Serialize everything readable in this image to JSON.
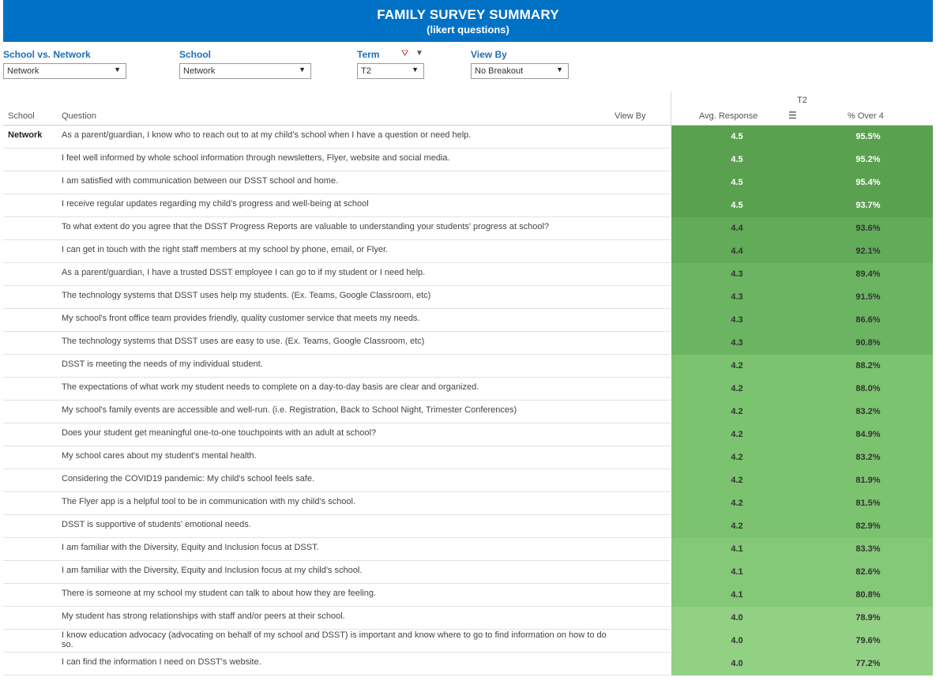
{
  "banner": {
    "title": "FAMILY SURVEY SUMMARY",
    "subtitle": "(likert questions)"
  },
  "filters": [
    {
      "label": "School vs. Network",
      "value": "Network"
    },
    {
      "label": "School",
      "value": "Network"
    },
    {
      "label": "Term",
      "value": "T2"
    },
    {
      "label": "View By",
      "value": "No Breakout"
    }
  ],
  "icons": {
    "filter_clear": "funnel-x-icon",
    "menu": "caret-down-icon",
    "sort": "sort-descending-icon",
    "dropdown": "caret-down-icon"
  },
  "colors": {
    "banner": "#0072c6",
    "label": "#1f6eb5",
    "green_dark": "#59a14f",
    "green_mid": "#6bb562",
    "green_light": "#7cc36f",
    "green_lightest": "#92d084"
  },
  "table": {
    "term_header": "T2",
    "columns": {
      "school": "School",
      "question": "Question",
      "view_by": "View By",
      "avg": "Avg. Response",
      "pct": "% Over 4"
    },
    "school_label": "Network",
    "rows": [
      {
        "q": "As a parent/guardian, I know who to reach out to at my child’s school when I have a question or need help.",
        "avg": "4.5",
        "pct": "95.5%",
        "color": "#59a14f",
        "text": "#ffffff"
      },
      {
        "q": "I feel well informed by whole school information through newsletters, Flyer, website and social media.",
        "avg": "4.5",
        "pct": "95.2%",
        "color": "#59a14f",
        "text": "#ffffff"
      },
      {
        "q": "I am satisfied with communication between our DSST school and home.",
        "avg": "4.5",
        "pct": "95.4%",
        "color": "#59a14f",
        "text": "#ffffff"
      },
      {
        "q": "I receive regular updates regarding my child’s progress and well-being at school",
        "avg": "4.5",
        "pct": "93.7%",
        "color": "#59a14f",
        "text": "#ffffff"
      },
      {
        "q": "To what extent do you agree that the DSST Progress Reports are valuable to understanding your students' progress at school?",
        "avg": "4.4",
        "pct": "93.6%",
        "color": "#62ab58",
        "text": "#333333"
      },
      {
        "q": "I can get in touch with the right staff members at my school by phone, email, or Flyer.",
        "avg": "4.4",
        "pct": "92.1%",
        "color": "#62ab58",
        "text": "#333333"
      },
      {
        "q": "As a parent/guardian, I have a trusted DSST employee I can go to if my student or I need help.",
        "avg": "4.3",
        "pct": "89.4%",
        "color": "#6bb562",
        "text": "#333333"
      },
      {
        "q": "The technology systems that DSST uses help my students. (Ex. Teams, Google Classroom, etc)",
        "avg": "4.3",
        "pct": "91.5%",
        "color": "#6bb562",
        "text": "#333333"
      },
      {
        "q": "My school's front office team provides friendly, quality customer service that meets my needs.",
        "avg": "4.3",
        "pct": "86.6%",
        "color": "#6bb562",
        "text": "#333333"
      },
      {
        "q": "The technology systems that DSST uses are easy to use. (Ex. Teams, Google Classroom, etc)",
        "avg": "4.3",
        "pct": "90.8%",
        "color": "#6bb562",
        "text": "#333333"
      },
      {
        "q": "DSST is meeting the needs of my individual student.",
        "avg": "4.2",
        "pct": "88.2%",
        "color": "#7cc36f",
        "text": "#333333"
      },
      {
        "q": "The expectations of what work my student needs to complete on a day-to-day basis are clear and organized.",
        "avg": "4.2",
        "pct": "88.0%",
        "color": "#7cc36f",
        "text": "#333333"
      },
      {
        "q": "My school's family events are accessible and well-run. (i.e. Registration, Back to School Night, Trimester Conferences)",
        "avg": "4.2",
        "pct": "83.2%",
        "color": "#7cc36f",
        "text": "#333333"
      },
      {
        "q": "Does your student get meaningful one-to-one touchpoints with an adult at school?",
        "avg": "4.2",
        "pct": "84.9%",
        "color": "#7cc36f",
        "text": "#333333"
      },
      {
        "q": "My school cares about my student's mental health.",
        "avg": "4.2",
        "pct": "83.2%",
        "color": "#7cc36f",
        "text": "#333333"
      },
      {
        "q": "Considering the COVID19 pandemic: My child's school feels safe.",
        "avg": "4.2",
        "pct": "81.9%",
        "color": "#7cc36f",
        "text": "#333333"
      },
      {
        "q": "The Flyer app is a helpful tool to be in communication with my child's school.",
        "avg": "4.2",
        "pct": "81.5%",
        "color": "#7cc36f",
        "text": "#333333"
      },
      {
        "q": "DSST is supportive of students' emotional needs.",
        "avg": "4.2",
        "pct": "82.9%",
        "color": "#7cc36f",
        "text": "#333333"
      },
      {
        "q": "I am familiar with the Diversity, Equity and Inclusion focus at DSST.",
        "avg": "4.1",
        "pct": "83.3%",
        "color": "#84c878",
        "text": "#333333"
      },
      {
        "q": "I am familiar with the Diversity, Equity and Inclusion focus at my child's school.",
        "avg": "4.1",
        "pct": "82.6%",
        "color": "#84c878",
        "text": "#333333"
      },
      {
        "q": "There is someone at my school my student can talk to about how they are feeling.",
        "avg": "4.1",
        "pct": "80.8%",
        "color": "#84c878",
        "text": "#333333"
      },
      {
        "q": "My student has strong relationships with staff and/or peers at their school.",
        "avg": "4.0",
        "pct": "78.9%",
        "color": "#92d084",
        "text": "#333333"
      },
      {
        "q": "I know education advocacy (advocating on behalf of my school and DSST) is important and know where to go to find information on how to do so.",
        "avg": "4.0",
        "pct": "79.6%",
        "color": "#92d084",
        "text": "#333333"
      },
      {
        "q": "I can find the information I need on DSST's website.",
        "avg": "4.0",
        "pct": "77.2%",
        "color": "#92d084",
        "text": "#333333"
      }
    ]
  }
}
